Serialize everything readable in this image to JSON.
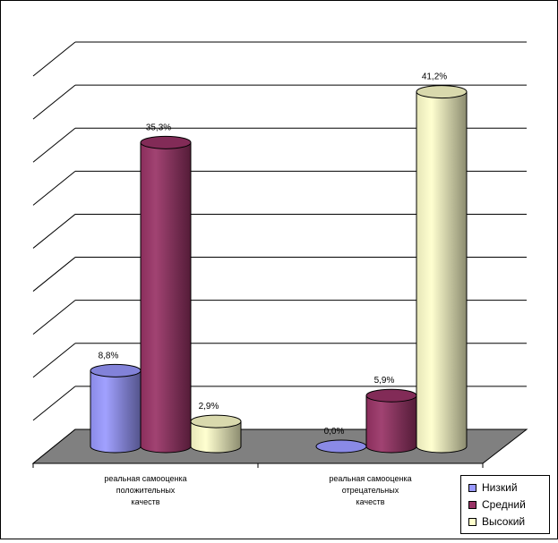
{
  "chart_data": {
    "type": "bar",
    "categories": [
      [
        "реальная самооценка",
        "положительных",
        "качеств"
      ],
      [
        "реальная самооценка",
        "отрецательных",
        "качеств"
      ]
    ],
    "series": [
      {
        "name": "Низкий",
        "values": [
          8.8,
          0.0
        ],
        "labels": [
          "8,8%",
          "0,0%"
        ],
        "color": "#9999ff"
      },
      {
        "name": "Средний",
        "values": [
          35.3,
          5.9
        ],
        "labels": [
          "35,3%",
          "5,9%"
        ],
        "color": "#993366"
      },
      {
        "name": "Высокий",
        "values": [
          2.9,
          41.2
        ],
        "labels": [
          "2,9%",
          "41,2%"
        ],
        "color": "#ffffcc"
      }
    ],
    "ylim": [
      0,
      45
    ],
    "grid": true,
    "legend": "bottom-right",
    "floor_color": "#808080"
  }
}
